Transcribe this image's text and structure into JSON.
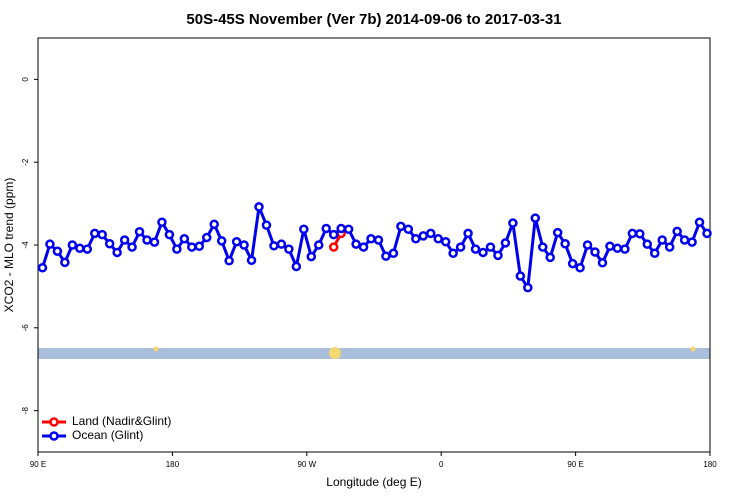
{
  "chart_data": {
    "type": "line",
    "title": "50S-45S November (Ver 7b)   2014-09-06 to 2017-03-31",
    "x_label": "Longitude (deg E)",
    "y_label": "XCO2 - MLO trend (ppm)",
    "xlim": [
      90,
      540
    ],
    "ylim": [
      1,
      -9
    ],
    "xticks": [
      {
        "value": 90,
        "label": "90 E"
      },
      {
        "value": 180,
        "label": "180"
      },
      {
        "value": 270,
        "label": "90 W"
      },
      {
        "value": 360,
        "label": "0"
      },
      {
        "value": 450,
        "label": "90 E"
      },
      {
        "value": 540,
        "label": "180"
      }
    ],
    "yticks": [
      0,
      -2,
      -4,
      -6,
      -8
    ],
    "legend_position": "bottom-left",
    "series": [
      {
        "name": "Land (Nadir&Glint)",
        "color": "#ff0000",
        "x": [
          288,
          293
        ],
        "values": [
          -4.05,
          -3.72
        ]
      },
      {
        "name": "Ocean (Glint)",
        "color": "#0000ee",
        "x": [
          93,
          98,
          103,
          108,
          113,
          118,
          123,
          128,
          133,
          138,
          143,
          148,
          153,
          158,
          163,
          168,
          173,
          178,
          183,
          188,
          193,
          198,
          203,
          208,
          213,
          218,
          223,
          228,
          233,
          238,
          243,
          248,
          253,
          258,
          263,
          268,
          273,
          278,
          283,
          288,
          293,
          298,
          303,
          308,
          313,
          318,
          323,
          328,
          333,
          338,
          343,
          348,
          353,
          358,
          363,
          368,
          373,
          378,
          383,
          388,
          393,
          398,
          403,
          408,
          413,
          418,
          423,
          428,
          433,
          438,
          443,
          448,
          453,
          458,
          463,
          468,
          473,
          478,
          483,
          488,
          493,
          498,
          503,
          508,
          513,
          518,
          523,
          528,
          533,
          538
        ],
        "values": [
          -4.55,
          -3.98,
          -4.15,
          -4.42,
          -4.0,
          -4.08,
          -4.1,
          -3.72,
          -3.75,
          -3.97,
          -4.18,
          -3.88,
          -4.05,
          -3.68,
          -3.88,
          -3.93,
          -3.45,
          -3.75,
          -4.1,
          -3.85,
          -4.05,
          -4.03,
          -3.82,
          -3.5,
          -3.9,
          -4.38,
          -3.92,
          -4.0,
          -4.37,
          -3.08,
          -3.52,
          -4.02,
          -3.98,
          -4.1,
          -4.52,
          -3.62,
          -4.28,
          -4.0,
          -3.6,
          -3.75,
          -3.6,
          -3.62,
          -3.98,
          -4.05,
          -3.85,
          -3.88,
          -4.27,
          -4.2,
          -3.55,
          -3.62,
          -3.85,
          -3.78,
          -3.72,
          -3.85,
          -3.92,
          -4.2,
          -4.05,
          -3.72,
          -4.1,
          -4.18,
          -4.05,
          -4.25,
          -3.95,
          -3.47,
          -4.75,
          -5.03,
          -3.35,
          -4.05,
          -4.3,
          -3.7,
          -3.97,
          -4.45,
          -4.55,
          -4.0,
          -4.17,
          -4.43,
          -4.03,
          -4.08,
          -4.1,
          -3.72,
          -3.73,
          -3.98,
          -4.2,
          -3.88,
          -4.05,
          -3.67,
          -3.88,
          -3.93,
          -3.45,
          -3.72
        ]
      }
    ]
  }
}
